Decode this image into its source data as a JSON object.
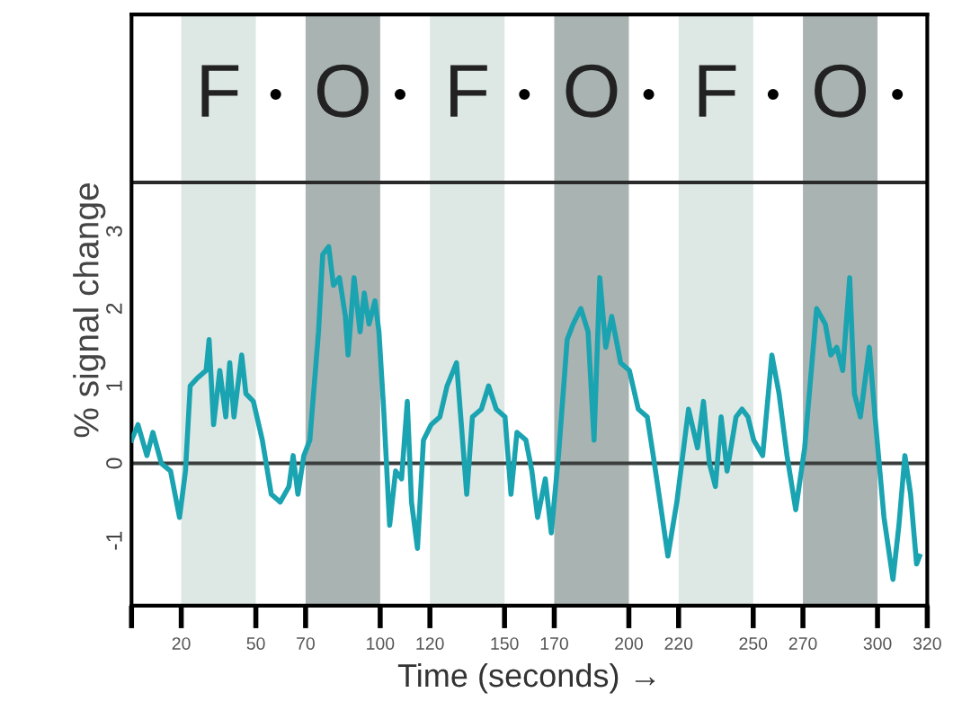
{
  "chart_data": {
    "type": "line",
    "xlabel": "Time (seconds) →",
    "ylabel": "% signal change",
    "x": [
      0,
      2.6,
      6.2,
      8.6,
      12,
      15.7,
      19.3,
      21.7,
      23.6,
      26.4,
      30,
      31.2,
      33,
      35.5,
      37.9,
      39.5,
      41.2,
      44.3,
      46,
      49,
      52.6,
      56.2,
      59.8,
      63.3,
      65,
      66.9,
      69.3,
      71.7,
      75.2,
      76.9,
      79.3,
      81.2,
      83.6,
      86,
      87.1,
      89.5,
      91.9,
      93.6,
      95.5,
      97.9,
      99.5,
      101.4,
      103.8,
      106.2,
      108.6,
      110.9,
      112.6,
      115,
      117.4,
      120.5,
      124,
      126.9,
      130.7,
      132.4,
      134.8,
      137.1,
      140.7,
      143.6,
      146.7,
      150.2,
      152.6,
      155,
      158.6,
      161,
      163.3,
      166.4,
      168.8,
      171.7,
      175.2,
      177.6,
      180.7,
      183.6,
      186,
      188.3,
      190.7,
      193.1,
      196.7,
      200.2,
      203.8,
      207.4,
      209.8,
      212.1,
      215.7,
      219.3,
      224,
      227.6,
      230,
      232.4,
      234.8,
      237.1,
      239.5,
      243.1,
      245.5,
      247.9,
      250.2,
      253.8,
      257.5,
      260.4,
      263.6,
      267.1,
      270.7,
      275.5,
      279,
      281.2,
      283.6,
      286,
      288.8,
      290.7,
      293.1,
      296.7,
      299,
      302.6,
      306.2,
      308.6,
      311,
      313.3,
      315.7,
      316.9
    ],
    "series": [
      {
        "color": "#1aa3b0",
        "values": [
          0.3,
          0.5,
          0.1,
          0.4,
          0.0,
          -0.1,
          -0.7,
          -0.1,
          1.0,
          1.1,
          1.2,
          1.6,
          0.5,
          1.2,
          0.6,
          1.3,
          0.6,
          1.4,
          0.9,
          0.8,
          0.3,
          -0.4,
          -0.5,
          -0.3,
          0.1,
          -0.4,
          0.1,
          0.3,
          1.7,
          2.7,
          2.8,
          2.3,
          2.4,
          1.9,
          1.4,
          2.4,
          1.7,
          2.2,
          1.8,
          2.1,
          1.7,
          0.7,
          -0.8,
          -0.1,
          -0.2,
          0.8,
          -0.5,
          -1.1,
          0.3,
          0.5,
          0.6,
          1.0,
          1.3,
          0.6,
          -0.4,
          0.6,
          0.7,
          1.0,
          0.7,
          0.6,
          -0.4,
          0.4,
          0.3,
          -0.1,
          -0.7,
          -0.2,
          -0.9,
          0.1,
          1.6,
          1.8,
          2.0,
          1.7,
          0.3,
          2.4,
          1.5,
          1.9,
          1.3,
          1.2,
          0.7,
          0.6,
          0.1,
          -0.4,
          -1.2,
          -0.5,
          0.7,
          0.2,
          0.8,
          0.0,
          -0.3,
          0.6,
          -0.1,
          0.6,
          0.7,
          0.6,
          0.3,
          0.1,
          1.4,
          0.9,
          0.1,
          -0.6,
          0.2,
          2.0,
          1.8,
          1.4,
          1.5,
          1.2,
          2.4,
          0.9,
          0.6,
          1.5,
          0.6,
          -0.7,
          -1.5,
          -0.8,
          0.1,
          -0.4,
          -1.3,
          -1.2
        ]
      }
    ],
    "xlim": [
      0,
      320
    ],
    "xticks": [
      {
        "value": 0,
        "label": null
      },
      20,
      50,
      70,
      100,
      120,
      150,
      170,
      200,
      220,
      250,
      270,
      300,
      320
    ],
    "ylim": [
      -1.84,
      5.8
    ],
    "yticks": [
      -1,
      0,
      1,
      2,
      3
    ],
    "ref_lines": [
      {
        "axis": "y",
        "value": 0,
        "color": "#3a3f3e"
      },
      {
        "axis": "y",
        "value": 3.63,
        "color": "#2a2a2a"
      }
    ],
    "bands": [
      {
        "axis": "x",
        "from": 20,
        "to": 50,
        "label": "F",
        "color": "#dde7e3"
      },
      {
        "axis": "x",
        "from": 70,
        "to": 100,
        "label": "O",
        "color": "#a9b3b1"
      },
      {
        "axis": "x",
        "from": 120,
        "to": 150,
        "label": "F",
        "color": "#dde7e3"
      },
      {
        "axis": "x",
        "from": 170,
        "to": 200,
        "label": "O",
        "color": "#a9b3b1"
      },
      {
        "axis": "x",
        "from": 220,
        "to": 250,
        "label": "F",
        "color": "#dde7e3"
      },
      {
        "axis": "x",
        "from": 270,
        "to": 300,
        "label": "O",
        "color": "#a9b3b1"
      }
    ],
    "annotations": [
      "•",
      "•",
      "•",
      "•",
      "•",
      "•"
    ],
    "grid": false,
    "legend": false
  }
}
